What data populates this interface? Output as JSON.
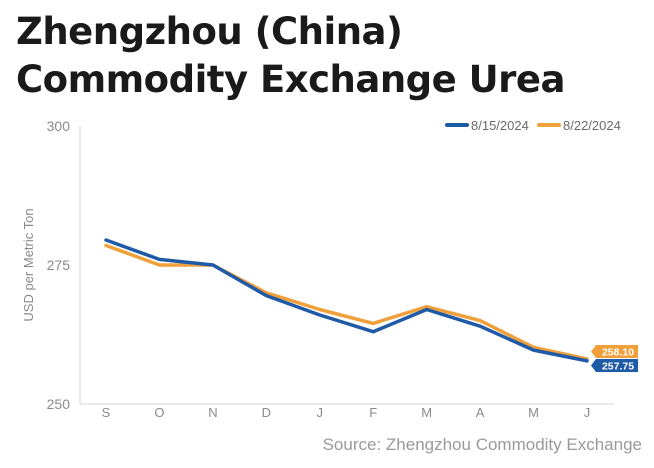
{
  "header": {
    "title": "Zhengzhou (China) Commodity Exchange Urea"
  },
  "footer": {
    "source": "Source: Zhengzhou Commodity Exchange"
  },
  "chart_data": {
    "type": "line",
    "title": "Zhengzhou (China) Commodity Exchange Urea",
    "xlabel": "",
    "ylabel": "USD per Metric Ton",
    "categories": [
      "S",
      "O",
      "N",
      "D",
      "J",
      "F",
      "M",
      "A",
      "M",
      "J"
    ],
    "ylim": [
      250,
      300
    ],
    "yticks": [
      250,
      275,
      300
    ],
    "grid": false,
    "legend_position": "top-right",
    "series": [
      {
        "name": "8/15/2024",
        "color": "#1f5aa6",
        "values": [
          279.5,
          276,
          275,
          269.5,
          266,
          263,
          267,
          264,
          259.7,
          257.75
        ],
        "end_label": "257.75"
      },
      {
        "name": "8/22/2024",
        "color": "#f0a03a",
        "values": [
          278.5,
          275,
          275,
          270,
          267,
          264.5,
          267.5,
          265,
          260.2,
          258.1
        ],
        "end_label": "258.10"
      }
    ]
  }
}
